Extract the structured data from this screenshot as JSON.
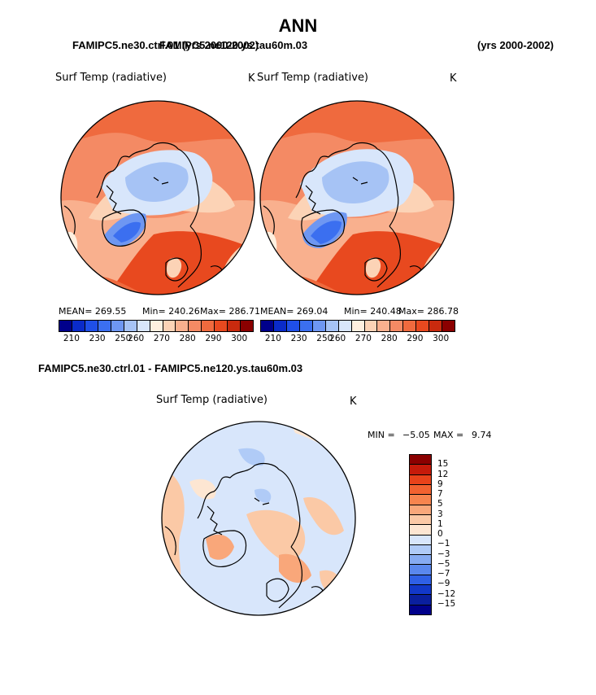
{
  "title": "ANN",
  "header_left": "FAMIPC5.ne30.ctrl.01 (yrs 2000-2002)",
  "header_overlap": "FAMIPC5.ne120.ys.tau60m.03",
  "header_right": "(yrs 2000-2002)",
  "diff_header": "FAMIPC5.ne30.ctrl.01 - FAMIPC5.ne120.ys.tau60m.03",
  "panel1": {
    "variable": "Surf Temp (radiative)",
    "units": "K",
    "mean_label": "MEAN= 269.55",
    "min_label": "Min= 240.26",
    "max_label": "Max= 286.71"
  },
  "panel2": {
    "variable": "Surf Temp (radiative)",
    "units": "K",
    "mean_label": "MEAN= 269.04",
    "min_label": "Min= 240.48",
    "max_label": "Max= 286.78"
  },
  "panel3": {
    "variable": "Surf Temp (radiative)",
    "units": "K",
    "min_label": "MIN =",
    "min_value": "−5.05",
    "max_label": "MAX =",
    "max_value": "9.74"
  },
  "colorbar_abs": {
    "ticks": [
      "210",
      "230",
      "250",
      "260",
      "270",
      "280",
      "290",
      "300"
    ],
    "colors": [
      "#00008b",
      "#0a2bc9",
      "#1f4fe8",
      "#3b6ff0",
      "#6e97f2",
      "#a6c3f5",
      "#d8e6fb",
      "#fff0e0",
      "#fcd3b6",
      "#f9b08e",
      "#f48a64",
      "#ef6a3e",
      "#e8491f",
      "#c92a0e",
      "#8b0000"
    ]
  },
  "colorbar_diff": {
    "ticks": [
      "15",
      "12",
      "9",
      "7",
      "5",
      "3",
      "1",
      "0",
      "−1",
      "−3",
      "−5",
      "−7",
      "−9",
      "−12",
      "−15"
    ],
    "colors": [
      "#8b0000",
      "#c51a0a",
      "#e8421a",
      "#f26230",
      "#f7844e",
      "#f9a77a",
      "#fbc9a6",
      "#fde6d2",
      "#d8e6fb",
      "#b0cbf7",
      "#86abf2",
      "#5a88ee",
      "#2f60e6",
      "#1238c9",
      "#0a1f9e",
      "#00008b"
    ]
  },
  "colors": {
    "cold": "#3b6ff0",
    "warm": "#ef6a3e",
    "land": "#000000"
  }
}
